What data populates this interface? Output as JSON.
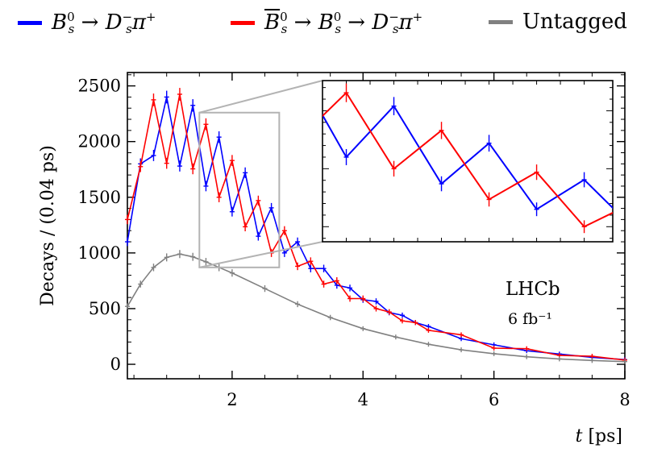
{
  "chart_data": {
    "type": "scatter",
    "title": "",
    "xlabel": "t [ps]",
    "ylabel": "Decays / (0.04 ps)",
    "xlim": [
      0.4,
      8
    ],
    "ylim": [
      -130,
      2620
    ],
    "xticks": [
      2,
      4,
      6,
      8
    ],
    "yticks": [
      0,
      500,
      1000,
      1500,
      2000,
      2500
    ],
    "grid": false,
    "legend_position": "top",
    "annotations": [
      "LHCb",
      "6 fb⁻¹"
    ],
    "series": [
      {
        "name": "B_s^0 → D_s^- π^+",
        "color": "#0000ff",
        "x": [
          0.4,
          0.6,
          0.8,
          1.0,
          1.2,
          1.4,
          1.6,
          1.8,
          2.0,
          2.2,
          2.4,
          2.6,
          2.8,
          3.0,
          3.2,
          3.4,
          3.6,
          3.8,
          4.0,
          4.2,
          4.4,
          4.6,
          4.8,
          5.0,
          5.5,
          6.0,
          6.5,
          7.0,
          7.5,
          8.0
        ],
        "y": [
          1100,
          1800,
          1875,
          2400,
          1780,
          2325,
          1600,
          2040,
          1370,
          1720,
          1150,
          1405,
          1000,
          1100,
          860,
          860,
          710,
          685,
          580,
          565,
          465,
          440,
          375,
          340,
          230,
          175,
          122,
          92,
          62,
          42
        ]
      },
      {
        "name": "B̅_s^0 → B_s^0 → D_s^- π^+",
        "color": "#ff0000",
        "x": [
          0.4,
          0.6,
          0.8,
          1.0,
          1.2,
          1.4,
          1.6,
          1.8,
          2.0,
          2.2,
          2.4,
          2.6,
          2.8,
          3.0,
          3.2,
          3.4,
          3.6,
          3.8,
          4.0,
          4.2,
          4.4,
          4.6,
          4.8,
          5.0,
          5.5,
          6.0,
          6.5,
          7.0,
          7.5,
          8.0
        ],
        "y": [
          1300,
          1775,
          2375,
          1805,
          2425,
          1755,
          2155,
          1500,
          1830,
          1235,
          1470,
          1000,
          1200,
          880,
          925,
          720,
          750,
          590,
          590,
          500,
          470,
          390,
          375,
          305,
          265,
          145,
          140,
          80,
          72,
          38
        ]
      },
      {
        "name": "Untagged",
        "color": "#808080",
        "x": [
          0.4,
          0.6,
          0.8,
          1.0,
          1.2,
          1.4,
          1.6,
          1.8,
          2.0,
          2.5,
          3.0,
          3.5,
          4.0,
          4.5,
          5.0,
          5.5,
          6.0,
          6.5,
          7.0,
          7.5,
          8.0
        ],
        "y": [
          520,
          720,
          870,
          960,
          990,
          965,
          920,
          870,
          820,
          680,
          540,
          420,
          320,
          245,
          180,
          130,
          95,
          68,
          48,
          34,
          24
        ]
      }
    ],
    "inset": {
      "x_range": [
        1.5,
        2.72
      ],
      "y_range": [
        870,
        2260
      ],
      "ticks_labeled": false
    }
  },
  "legend": {
    "blue": {
      "color": "#0000ff"
    },
    "red": {
      "color": "#ff0000"
    },
    "grey": {
      "label": "Untagged",
      "color": "#808080"
    }
  }
}
